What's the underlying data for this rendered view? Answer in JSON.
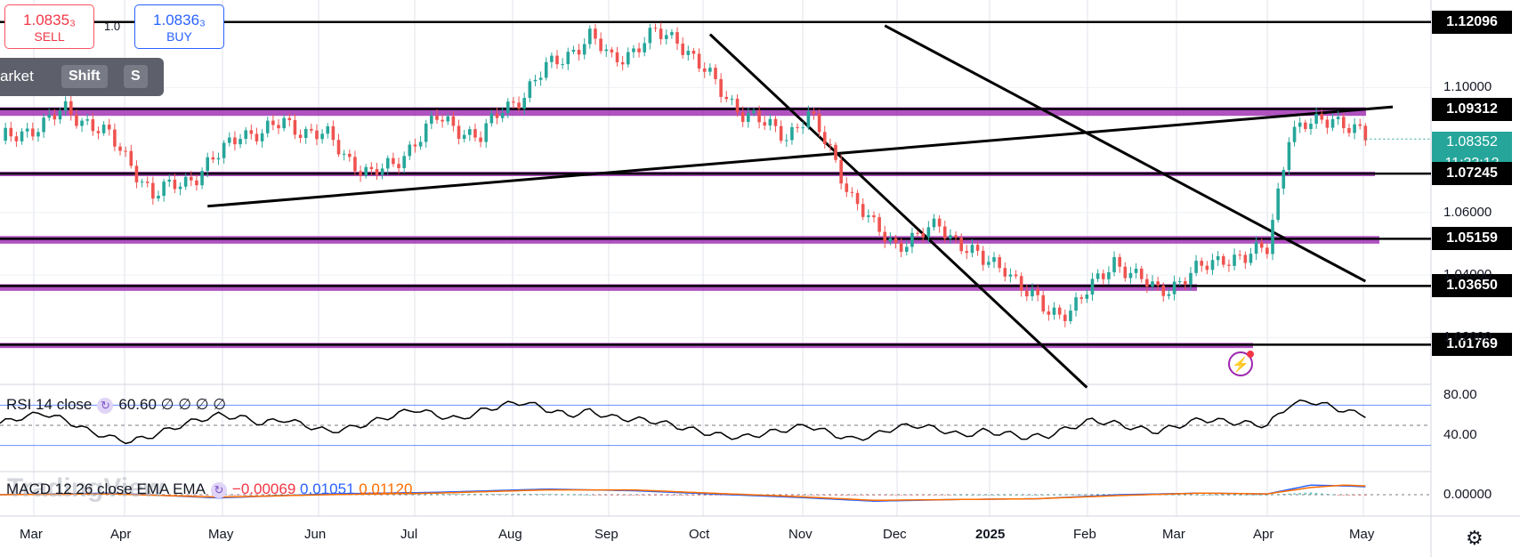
{
  "trade": {
    "sell_price": "1.0835₃",
    "sell_label": "SELL",
    "buy_price": "1.0836₃",
    "buy_label": "BUY",
    "spread": "1.0"
  },
  "hotkey_tip": {
    "text": "arket",
    "key1": "Shift",
    "key2": "S"
  },
  "current_price": {
    "value": "1.08352",
    "countdown": "11:33:12",
    "color": "#26a69a"
  },
  "alert_icon": "lightning-alert-icon",
  "settings_icon": "gear-icon",
  "watermark": "TradingView",
  "rsi_legend": {
    "label": "RSI 14 close",
    "value": "60.60",
    "extra": "∅ ∅ ∅ ∅"
  },
  "macd_legend": {
    "label": "MACD 12 26 close EMA EMA",
    "hist": "−0.00069",
    "macd": "0.01051",
    "signal": "0.01120"
  },
  "chart_data": {
    "type": "candlestick",
    "instrument": "EURUSD",
    "ylim": [
      1.005,
      1.128
    ],
    "x_ticks": [
      "Mar",
      "Apr",
      "May",
      "Jun",
      "Jul",
      "Aug",
      "Sep",
      "Oct",
      "Nov",
      "Dec",
      "2025",
      "Feb",
      "Mar",
      "Apr",
      "May"
    ],
    "y_ticks": [
      "1.10000",
      "1.06000",
      "1.04000",
      "1.02000"
    ],
    "level_labels": [
      "1.12096",
      "1.09312",
      "1.07245",
      "1.05159",
      "1.03650",
      "1.01769"
    ],
    "close_path": [
      [
        0,
        1.083
      ],
      [
        4,
        1.086
      ],
      [
        8,
        1.088
      ],
      [
        12,
        1.093
      ],
      [
        16,
        1.089
      ],
      [
        20,
        1.084
      ],
      [
        24,
        1.076
      ],
      [
        28,
        1.065
      ],
      [
        32,
        1.069
      ],
      [
        36,
        1.072
      ],
      [
        40,
        1.078
      ],
      [
        44,
        1.086
      ],
      [
        48,
        1.085
      ],
      [
        52,
        1.089
      ],
      [
        56,
        1.086
      ],
      [
        60,
        1.084
      ],
      [
        64,
        1.077
      ],
      [
        68,
        1.072
      ],
      [
        72,
        1.075
      ],
      [
        76,
        1.083
      ],
      [
        80,
        1.09
      ],
      [
        84,
        1.087
      ],
      [
        88,
        1.084
      ],
      [
        92,
        1.093
      ],
      [
        96,
        1.098
      ],
      [
        100,
        1.106
      ],
      [
        104,
        1.111
      ],
      [
        108,
        1.116
      ],
      [
        112,
        1.109
      ],
      [
        116,
        1.112
      ],
      [
        120,
        1.117
      ],
      [
        124,
        1.116
      ],
      [
        128,
        1.107
      ],
      [
        132,
        1.099
      ],
      [
        136,
        1.092
      ],
      [
        140,
        1.088
      ],
      [
        144,
        1.085
      ],
      [
        148,
        1.091
      ],
      [
        152,
        1.08
      ],
      [
        156,
        1.065
      ],
      [
        160,
        1.055
      ],
      [
        164,
        1.05
      ],
      [
        168,
        1.052
      ],
      [
        172,
        1.056
      ],
      [
        176,
        1.05
      ],
      [
        180,
        1.044
      ],
      [
        184,
        1.043
      ],
      [
        188,
        1.034
      ],
      [
        192,
        1.028
      ],
      [
        196,
        1.029
      ],
      [
        200,
        1.036
      ],
      [
        204,
        1.045
      ],
      [
        208,
        1.039
      ],
      [
        212,
        1.035
      ],
      [
        216,
        1.038
      ],
      [
        220,
        1.042
      ],
      [
        224,
        1.046
      ],
      [
        228,
        1.045
      ],
      [
        232,
        1.049
      ],
      [
        236,
        1.085
      ],
      [
        240,
        1.088
      ],
      [
        244,
        1.091
      ],
      [
        248,
        1.086
      ],
      [
        250,
        1.0835
      ]
    ],
    "rsi": {
      "levels": [
        70,
        50,
        30
      ],
      "last": 60.6,
      "path": [
        [
          0,
          52
        ],
        [
          4,
          58
        ],
        [
          8,
          62
        ],
        [
          12,
          55
        ],
        [
          16,
          45
        ],
        [
          20,
          38
        ],
        [
          24,
          34
        ],
        [
          28,
          40
        ],
        [
          32,
          48
        ],
        [
          36,
          55
        ],
        [
          40,
          60
        ],
        [
          44,
          58
        ],
        [
          48,
          52
        ],
        [
          52,
          56
        ],
        [
          56,
          50
        ],
        [
          60,
          44
        ],
        [
          64,
          47
        ],
        [
          68,
          53
        ],
        [
          72,
          60
        ],
        [
          76,
          66
        ],
        [
          80,
          60
        ],
        [
          84,
          56
        ],
        [
          88,
          64
        ],
        [
          92,
          70
        ],
        [
          96,
          73
        ],
        [
          100,
          66
        ],
        [
          104,
          60
        ],
        [
          108,
          64
        ],
        [
          112,
          58
        ],
        [
          116,
          56
        ],
        [
          120,
          54
        ],
        [
          124,
          49
        ],
        [
          128,
          44
        ],
        [
          132,
          40
        ],
        [
          136,
          38
        ],
        [
          140,
          42
        ],
        [
          144,
          46
        ],
        [
          148,
          50
        ],
        [
          152,
          42
        ],
        [
          156,
          36
        ],
        [
          160,
          40
        ],
        [
          164,
          48
        ],
        [
          168,
          50
        ],
        [
          172,
          46
        ],
        [
          176,
          40
        ],
        [
          180,
          44
        ],
        [
          184,
          42
        ],
        [
          188,
          38
        ],
        [
          192,
          40
        ],
        [
          196,
          48
        ],
        [
          200,
          55
        ],
        [
          204,
          52
        ],
        [
          208,
          47
        ],
        [
          212,
          44
        ],
        [
          216,
          50
        ],
        [
          220,
          56
        ],
        [
          224,
          54
        ],
        [
          228,
          52
        ],
        [
          232,
          50
        ],
        [
          236,
          70
        ],
        [
          240,
          74
        ],
        [
          244,
          68
        ],
        [
          248,
          62
        ],
        [
          250,
          60.6
        ]
      ]
    },
    "macd": {
      "zero_label": "0.00000",
      "macd_line": [
        [
          0,
          0.0
        ],
        [
          20,
          0.002
        ],
        [
          40,
          -0.004
        ],
        [
          60,
          0.001
        ],
        [
          80,
          0.003
        ],
        [
          100,
          0.007
        ],
        [
          116,
          0.005
        ],
        [
          130,
          0.001
        ],
        [
          145,
          -0.003
        ],
        [
          160,
          -0.008
        ],
        [
          175,
          -0.006
        ],
        [
          190,
          -0.005
        ],
        [
          205,
          0.0
        ],
        [
          220,
          0.002
        ],
        [
          232,
          0.001
        ],
        [
          240,
          0.012
        ],
        [
          246,
          0.011
        ],
        [
          250,
          0.01
        ]
      ],
      "signal_line": [
        [
          0,
          0.0
        ],
        [
          20,
          0.001
        ],
        [
          40,
          -0.003
        ],
        [
          60,
          0.0
        ],
        [
          80,
          0.002
        ],
        [
          100,
          0.006
        ],
        [
          116,
          0.006
        ],
        [
          130,
          0.002
        ],
        [
          145,
          -0.002
        ],
        [
          160,
          -0.007
        ],
        [
          175,
          -0.006
        ],
        [
          190,
          -0.005
        ],
        [
          205,
          -0.001
        ],
        [
          220,
          0.002
        ],
        [
          232,
          0.001
        ],
        [
          240,
          0.009
        ],
        [
          246,
          0.012
        ],
        [
          250,
          0.011
        ]
      ]
    }
  }
}
